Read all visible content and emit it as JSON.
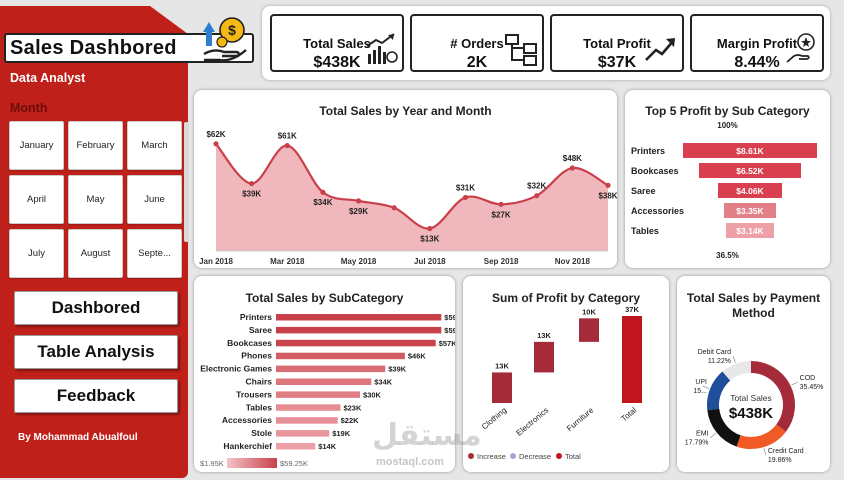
{
  "app": {
    "title": "Sales Dashbored",
    "subtitle": "Data Analyst",
    "author": "By Mohammad Abualfoul"
  },
  "filters": {
    "month_label": "Month",
    "months": [
      "January",
      "February",
      "March",
      "April",
      "May",
      "June",
      "July",
      "August",
      "Septe..."
    ]
  },
  "nav": {
    "dashboard": "Dashbored",
    "table_analysis": "Table Analysis",
    "feedback": "Feedback"
  },
  "kpis": {
    "total_sales": {
      "label": "Total Sales",
      "value": "$438K",
      "icon": "sales-growth-icon"
    },
    "orders": {
      "label": "# Orders",
      "value": "2K",
      "icon": "hierarchy-icon"
    },
    "total_profit": {
      "label": "Total Profit",
      "value": "$37K",
      "icon": "trend-up-icon"
    },
    "margin_profit": {
      "label": "Margin Profit",
      "value": "8.44%",
      "icon": "hand-star-icon"
    }
  },
  "colors": {
    "sidebar": "#c0201a",
    "accent": "#c9404a",
    "area_fill": "#f0b8bc",
    "top_bar": "#d9404f",
    "increase": "#a52a3a",
    "decrease": "#b0a0d8",
    "total": "#c0141e",
    "pay_cod": "#a52a3a",
    "pay_credit": "#f05a24",
    "pay_emi": "#111111",
    "pay_upi": "#1f4e9a",
    "pay_debit": "#e8e8e8"
  },
  "charts": {
    "line": {
      "title": "Total Sales by Year and Month"
    },
    "top5": {
      "title": "Top 5 Profit by Sub Category",
      "top_pct": "100%",
      "bottom_pct": "36.5%"
    },
    "subcategory": {
      "title": "Total Sales by SubCategory",
      "legend_min": "$1.95K",
      "legend_max": "$59.25K"
    },
    "waterfall": {
      "title": "Sum of Profit by Category",
      "legend": [
        "Increase",
        "Decrease",
        "Total"
      ]
    },
    "payment": {
      "title": "Total Sales by Payment Method",
      "center_label": "Total Sales",
      "center_value": "$438K"
    }
  },
  "watermark": {
    "logo": "مستقل",
    "url": "mostaql.com"
  },
  "chart_data": [
    {
      "type": "area",
      "title": "Total Sales by Year and Month",
      "x_ticks": [
        "Jan 2018",
        "Mar 2018",
        "May 2018",
        "Jul 2018",
        "Sep 2018",
        "Nov 2018"
      ],
      "x": [
        "Jan 2018",
        "Feb 2018",
        "Mar 2018",
        "Apr 2018",
        "May 2018",
        "Jun 2018",
        "Jul 2018",
        "Aug 2018",
        "Sep 2018",
        "Oct 2018",
        "Nov 2018",
        "Dec 2018"
      ],
      "values": [
        62,
        39,
        61,
        34,
        29,
        25,
        13,
        31,
        27,
        32,
        48,
        38
      ],
      "labels": [
        "$62K",
        "$39K",
        "$61K",
        "$34K",
        "$29K",
        "",
        "$13K",
        "$31K",
        "$27K",
        "$32K",
        "$48K",
        "$38K"
      ],
      "unit": "K USD",
      "ylim": [
        0,
        70
      ]
    },
    {
      "type": "bar",
      "title": "Top 5 Profit by Sub Category",
      "categories": [
        "Printers",
        "Bookcases",
        "Saree",
        "Accessories",
        "Tables"
      ],
      "values": [
        8.61,
        6.52,
        4.06,
        3.35,
        3.14
      ],
      "labels": [
        "$8.61K",
        "$6.52K",
        "$4.06K",
        "$3.35K",
        "$3.14K"
      ]
    },
    {
      "type": "bar",
      "title": "Total Sales by SubCategory",
      "categories": [
        "Printers",
        "Saree",
        "Bookcases",
        "Phones",
        "Electronic Games",
        "Chairs",
        "Trousers",
        "Tables",
        "Accessories",
        "Stole",
        "Hankerchief"
      ],
      "values": [
        59,
        59,
        57,
        46,
        39,
        34,
        30,
        23,
        22,
        19,
        14
      ],
      "labels": [
        "$59K",
        "$59K",
        "$57K",
        "$46K",
        "$39K",
        "$34K",
        "$30K",
        "$23K",
        "$22K",
        "$19K",
        "$14K"
      ],
      "xlim": [
        0,
        59.25
      ]
    },
    {
      "type": "bar",
      "title": "Sum of Profit by Category",
      "categories": [
        "Clothing",
        "Electronics",
        "Furniture",
        "Total"
      ],
      "values": [
        13,
        13,
        10,
        37
      ],
      "labels": [
        "13K",
        "13K",
        "10K",
        "37K"
      ],
      "kinds": [
        "increase",
        "increase",
        "increase",
        "total"
      ]
    },
    {
      "type": "pie",
      "title": "Total Sales by Payment Method",
      "categories": [
        "COD",
        "Credit Card",
        "EMI",
        "UPI",
        "Debit Card"
      ],
      "values": [
        35.45,
        19.86,
        17.79,
        15.68,
        11.22
      ],
      "labels": [
        "35.45%",
        "19.86%",
        "17.79%",
        "15...",
        "11.22%"
      ]
    }
  ]
}
